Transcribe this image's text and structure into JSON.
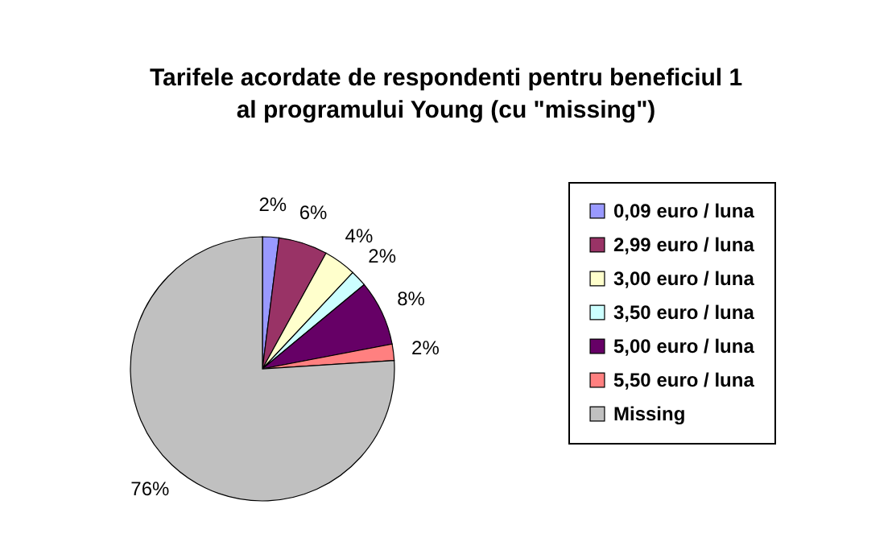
{
  "chart_data": {
    "type": "pie",
    "title": "Tarifele acordate de respondenti pentru beneficiul 1 al programului Young (cu \"missing\")",
    "categories": [
      "0,09 euro / luna",
      "2,99 euro / luna",
      "3,00 euro / luna",
      "3,50 euro / luna",
      "5,00 euro / luna",
      "5,50 euro / luna",
      "Missing"
    ],
    "values": [
      2,
      6,
      4,
      2,
      8,
      2,
      76
    ],
    "value_labels": [
      "2%",
      "6%",
      "4%",
      "2%",
      "8%",
      "2%",
      "76%"
    ],
    "colors": [
      "#9999ff",
      "#993366",
      "#ffffcc",
      "#ccffff",
      "#660066",
      "#ff8080",
      "#c0c0c0"
    ],
    "legend": "right"
  }
}
